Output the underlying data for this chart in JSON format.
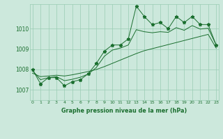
{
  "title": "Graphe pression niveau de la mer (hPa)",
  "x_labels": [
    "0",
    "1",
    "2",
    "3",
    "4",
    "5",
    "6",
    "7",
    "8",
    "9",
    "10",
    "11",
    "12",
    "13",
    "14",
    "15",
    "16",
    "17",
    "18",
    "19",
    "20",
    "21",
    "22",
    "23"
  ],
  "y_ticks": [
    1007,
    1008,
    1009,
    1010
  ],
  "y_min": 1006.5,
  "y_max": 1011.2,
  "main_values": [
    1008.0,
    1007.3,
    1007.6,
    1007.6,
    1007.2,
    1007.4,
    1007.5,
    1007.8,
    1008.3,
    1008.9,
    1009.2,
    1009.2,
    1009.5,
    1011.1,
    1010.6,
    1010.2,
    1010.3,
    1010.0,
    1010.6,
    1010.3,
    1010.6,
    1010.2,
    1010.2,
    1009.2
  ],
  "line1_values": [
    1007.95,
    1007.5,
    1007.6,
    1007.65,
    1007.45,
    1007.52,
    1007.62,
    1007.78,
    1008.1,
    1008.65,
    1008.95,
    1009.05,
    1009.2,
    1009.95,
    1009.85,
    1009.8,
    1009.85,
    1009.82,
    1010.05,
    1009.92,
    1010.15,
    1009.98,
    1010.02,
    1009.2
  ],
  "line2_values": [
    1007.82,
    1007.65,
    1007.68,
    1007.72,
    1007.68,
    1007.74,
    1007.82,
    1007.9,
    1008.0,
    1008.14,
    1008.3,
    1008.46,
    1008.62,
    1008.78,
    1008.92,
    1009.02,
    1009.12,
    1009.22,
    1009.32,
    1009.42,
    1009.52,
    1009.62,
    1009.72,
    1009.05
  ],
  "bg_color": "#cce8dc",
  "grid_color": "#99ccb3",
  "line_color": "#1a6e2e",
  "title_color": "#1a6e2e",
  "marker": "*",
  "marker_size": 3.5
}
